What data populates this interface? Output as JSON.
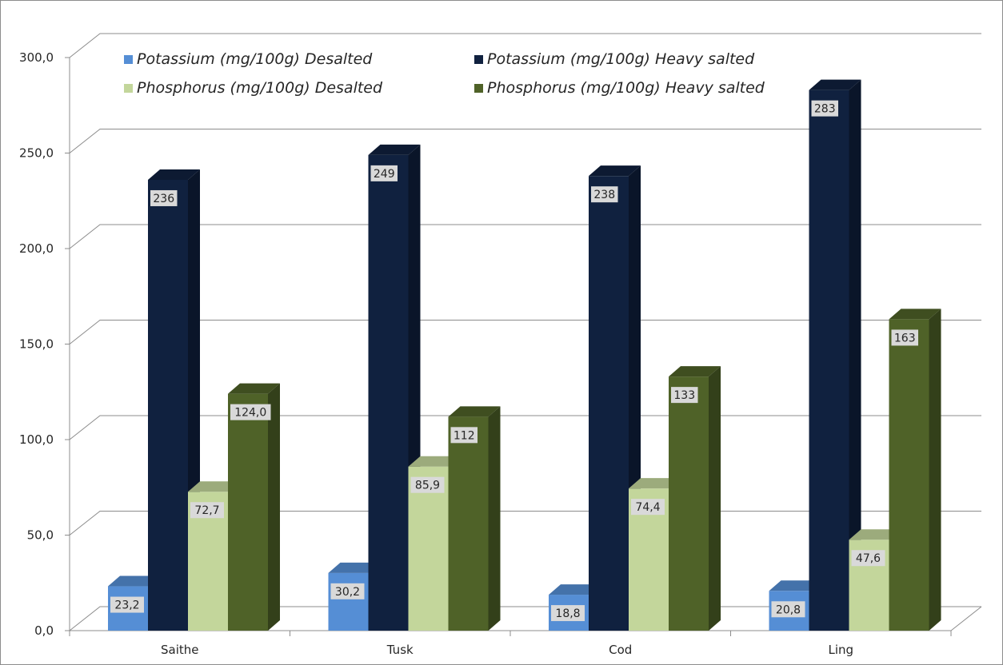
{
  "chart_data": {
    "type": "bar",
    "title": "",
    "xlabel": "",
    "ylabel": "",
    "categories": [
      "Saithe",
      "Tusk",
      "Cod",
      "Ling"
    ],
    "series": [
      {
        "name": "Potassium (mg/100g) Desalted",
        "values": [
          23.2,
          30.2,
          18.8,
          20.8
        ],
        "labels": [
          "23,2",
          "30,2",
          "18,8",
          "20,8"
        ],
        "color": "#558ed5"
      },
      {
        "name": "Potassium (mg/100g) Heavy salted",
        "values": [
          236,
          249,
          238,
          283
        ],
        "labels": [
          "236",
          "249",
          "238",
          "283"
        ],
        "color": "#10213f"
      },
      {
        "name": "Phosphorus (mg/100g) Desalted",
        "values": [
          72.7,
          85.9,
          74.4,
          47.6
        ],
        "labels": [
          "72,7",
          "85,9",
          "74,4",
          "47,6"
        ],
        "color": "#c3d69b"
      },
      {
        "name": "Phosphorus (mg/100g) Heavy salted",
        "values": [
          124.0,
          112,
          133,
          163
        ],
        "labels": [
          "124,0",
          "112",
          "133",
          "163"
        ],
        "color": "#4f6228"
      }
    ],
    "ylim": [
      0,
      300
    ],
    "yticks": [
      0,
      50,
      100,
      150,
      200,
      250,
      300
    ],
    "ytick_labels": [
      "0,0",
      "50,0",
      "100,0",
      "150,0",
      "200,0",
      "250,0",
      "300,0"
    ],
    "grid": true,
    "legend_position": "top-left",
    "style": "3d-column"
  }
}
